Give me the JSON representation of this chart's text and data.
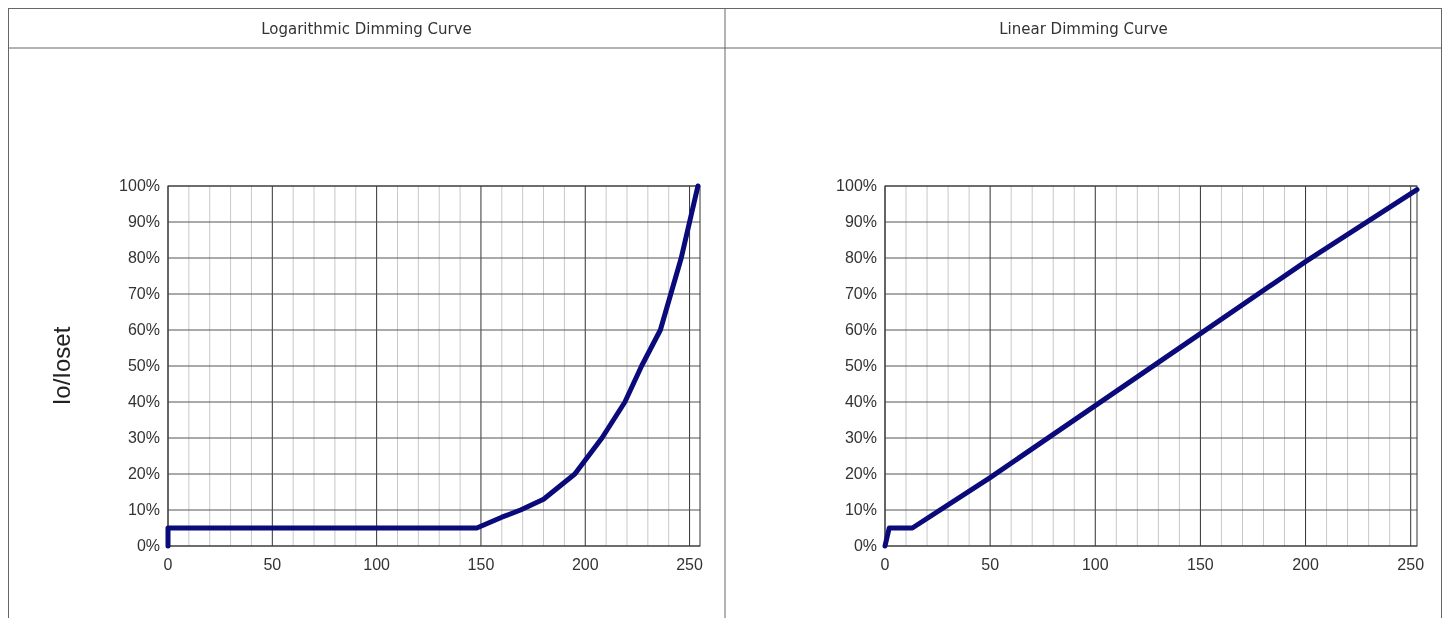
{
  "chart_data": [
    {
      "type": "line",
      "title": "Logarithmic Dimming Curve",
      "ylabel": "Io/Ioset",
      "xlim": [
        0,
        255
      ],
      "ylim": [
        0,
        100
      ],
      "xticks": [
        0,
        {
          "value": 10,
          "label": null
        },
        {
          "value": 20,
          "label": null
        },
        {
          "value": 30,
          "label": null
        },
        {
          "value": 40,
          "label": null
        },
        50,
        {
          "value": 60,
          "label": null
        },
        {
          "value": 70,
          "label": null
        },
        {
          "value": 80,
          "label": null
        },
        {
          "value": 90,
          "label": null
        },
        100,
        {
          "value": 110,
          "label": null
        },
        {
          "value": 120,
          "label": null
        },
        {
          "value": 130,
          "label": null
        },
        {
          "value": 140,
          "label": null
        },
        150,
        {
          "value": 160,
          "label": null
        },
        {
          "value": 170,
          "label": null
        },
        {
          "value": 180,
          "label": null
        },
        {
          "value": 190,
          "label": null
        },
        200,
        {
          "value": 210,
          "label": null
        },
        {
          "value": 220,
          "label": null
        },
        {
          "value": 230,
          "label": null
        },
        {
          "value": 240,
          "label": null
        },
        250
      ],
      "yticks": [
        {
          "value": 0,
          "label": "0%"
        },
        {
          "value": 10,
          "label": "10%"
        },
        {
          "value": 20,
          "label": "20%"
        },
        {
          "value": 30,
          "label": "30%"
        },
        {
          "value": 40,
          "label": "40%"
        },
        {
          "value": 50,
          "label": "50%"
        },
        {
          "value": 60,
          "label": "60%"
        },
        {
          "value": 70,
          "label": "70%"
        },
        {
          "value": 80,
          "label": "80%"
        },
        {
          "value": 90,
          "label": "90%"
        },
        {
          "value": 100,
          "label": "100%"
        }
      ],
      "grid": true,
      "line_style": "solid",
      "series": [
        {
          "color": "#0a0a7a",
          "x": [
            0,
            0,
            148,
            160,
            169,
            180,
            195,
            208,
            219,
            227,
            236,
            241,
            246,
            250,
            254
          ],
          "values": [
            0,
            5,
            5,
            8,
            10,
            13,
            20,
            30,
            40,
            50,
            60,
            70,
            80,
            90,
            100
          ]
        }
      ]
    },
    {
      "type": "line",
      "title": "Linear Dimming Curve",
      "xlim": [
        0,
        253
      ],
      "ylim": [
        0,
        100
      ],
      "xticks": [
        0,
        {
          "value": 10,
          "label": null
        },
        {
          "value": 20,
          "label": null
        },
        {
          "value": 30,
          "label": null
        },
        {
          "value": 40,
          "label": null
        },
        50,
        {
          "value": 60,
          "label": null
        },
        {
          "value": 70,
          "label": null
        },
        {
          "value": 80,
          "label": null
        },
        {
          "value": 90,
          "label": null
        },
        100,
        {
          "value": 110,
          "label": null
        },
        {
          "value": 120,
          "label": null
        },
        {
          "value": 130,
          "label": null
        },
        {
          "value": 140,
          "label": null
        },
        150,
        {
          "value": 160,
          "label": null
        },
        {
          "value": 170,
          "label": null
        },
        {
          "value": 180,
          "label": null
        },
        {
          "value": 190,
          "label": null
        },
        200,
        {
          "value": 210,
          "label": null
        },
        {
          "value": 220,
          "label": null
        },
        {
          "value": 230,
          "label": null
        },
        {
          "value": 240,
          "label": null
        },
        250
      ],
      "yticks": [
        {
          "value": 0,
          "label": "0%"
        },
        {
          "value": 10,
          "label": "10%"
        },
        {
          "value": 20,
          "label": "20%"
        },
        {
          "value": 30,
          "label": "30%"
        },
        {
          "value": 40,
          "label": "40%"
        },
        {
          "value": 50,
          "label": "50%"
        },
        {
          "value": 60,
          "label": "60%"
        },
        {
          "value": 70,
          "label": "70%"
        },
        {
          "value": 80,
          "label": "80%"
        },
        {
          "value": 90,
          "label": "90%"
        },
        {
          "value": 100,
          "label": "100%"
        }
      ],
      "grid": true,
      "line_style": "solid",
      "series": [
        {
          "color": "#0a0a7a",
          "x": [
            0,
            2,
            13,
            50,
            100,
            150,
            200,
            253
          ],
          "values": [
            0,
            5,
            5,
            19,
            39,
            59,
            79,
            99
          ]
        }
      ]
    }
  ]
}
